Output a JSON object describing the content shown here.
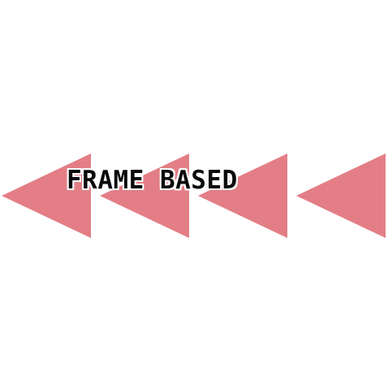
{
  "title": "FRAME BASED",
  "arrows": {
    "icon": "rewind-triangle-icon",
    "count": 4,
    "fill_color": "#e37e86",
    "background_color": "#ffffff",
    "text_color": "#0a0a0a"
  }
}
